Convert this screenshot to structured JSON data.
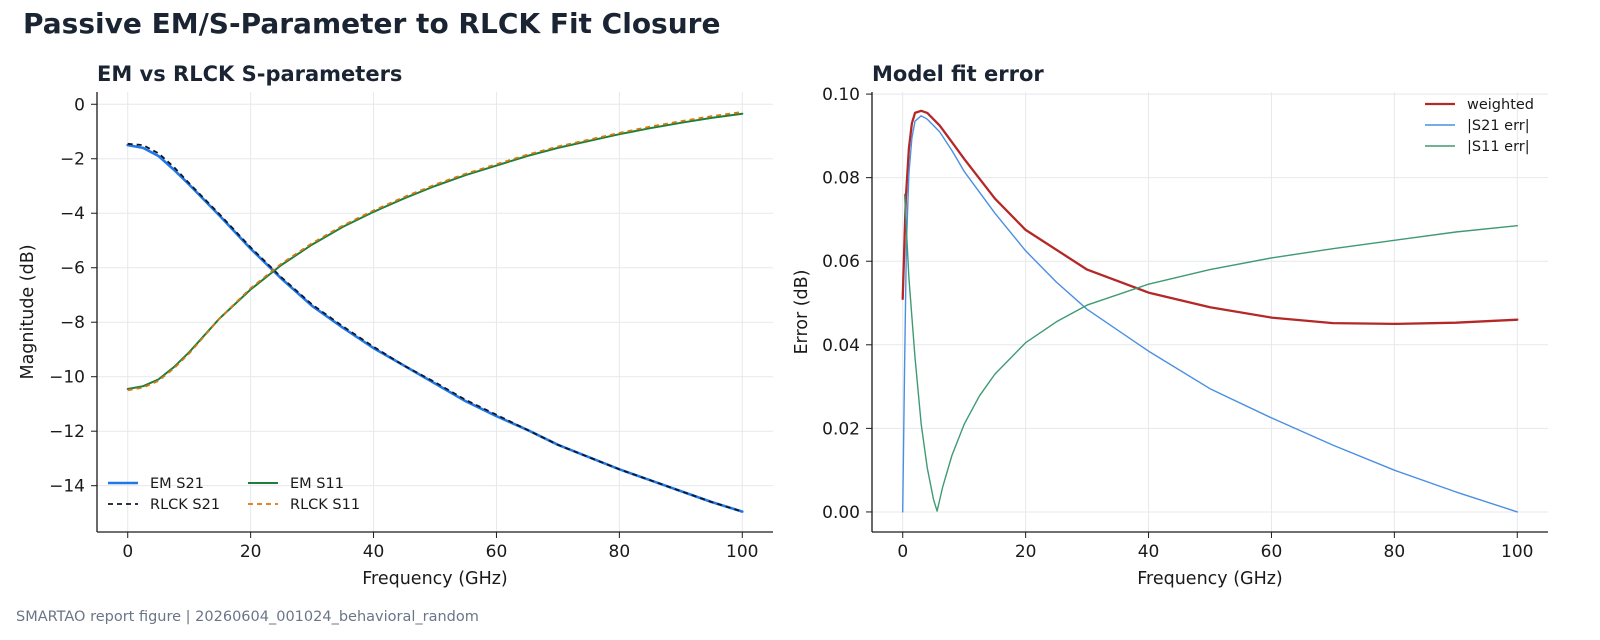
{
  "page": {
    "title": "Passive EM/S-Parameter to RLCK Fit Closure",
    "footer": "SMARTAO report figure | 20260604_001024_behavioral_random"
  },
  "chart_data": [
    {
      "type": "line",
      "title": "EM vs RLCK S-parameters",
      "xlabel": "Frequency (GHz)",
      "ylabel": "Magnitude (dB)",
      "xlim": [
        -5,
        105
      ],
      "ylim": [
        -15.7,
        0.45
      ],
      "xticks": [
        0,
        20,
        40,
        60,
        80,
        100
      ],
      "yticks": [
        0,
        -2,
        -4,
        -6,
        -8,
        -10,
        -12,
        -14
      ],
      "grid": true,
      "legend": "lower-left",
      "x": [
        0,
        2.5,
        5,
        7.5,
        10,
        15,
        20,
        25,
        30,
        35,
        40,
        45,
        50,
        55,
        60,
        65,
        70,
        75,
        80,
        85,
        90,
        95,
        100
      ],
      "series": [
        {
          "name": "EM S21",
          "color": "#1f77e8",
          "dash": "solid",
          "width": 2.6,
          "values": [
            -1.5,
            -1.6,
            -1.9,
            -2.4,
            -2.95,
            -4.1,
            -5.3,
            -6.4,
            -7.4,
            -8.2,
            -8.95,
            -9.6,
            -10.25,
            -10.9,
            -11.45,
            -11.95,
            -12.5,
            -12.95,
            -13.4,
            -13.8,
            -14.2,
            -14.6,
            -14.95
          ]
        },
        {
          "name": "RLCK S21",
          "color": "#0f172a",
          "dash": "5,4",
          "width": 1.8,
          "values": [
            -1.45,
            -1.5,
            -1.8,
            -2.3,
            -2.9,
            -4.05,
            -5.25,
            -6.35,
            -7.35,
            -8.15,
            -8.9,
            -9.6,
            -10.2,
            -10.85,
            -11.4,
            -11.95,
            -12.5,
            -12.95,
            -13.4,
            -13.8,
            -14.2,
            -14.6,
            -14.95
          ]
        },
        {
          "name": "EM S11",
          "color": "#1b7f3a",
          "dash": "solid",
          "width": 2.0,
          "values": [
            -10.45,
            -10.35,
            -10.1,
            -9.65,
            -9.1,
            -7.85,
            -6.8,
            -5.9,
            -5.15,
            -4.5,
            -3.95,
            -3.45,
            -3.0,
            -2.6,
            -2.25,
            -1.9,
            -1.6,
            -1.35,
            -1.1,
            -0.88,
            -0.68,
            -0.5,
            -0.35
          ]
        },
        {
          "name": "RLCK S11",
          "color": "#d9770f",
          "dash": "5,4",
          "width": 1.8,
          "values": [
            -10.5,
            -10.4,
            -10.15,
            -9.7,
            -9.15,
            -7.85,
            -6.75,
            -5.85,
            -5.1,
            -4.45,
            -3.9,
            -3.4,
            -2.95,
            -2.55,
            -2.2,
            -1.85,
            -1.55,
            -1.3,
            -1.05,
            -0.82,
            -0.62,
            -0.44,
            -0.28
          ]
        }
      ]
    },
    {
      "type": "line",
      "title": "Model fit error",
      "xlabel": "Frequency (GHz)",
      "ylabel": "Error (dB)",
      "xlim": [
        -5,
        105
      ],
      "ylim": [
        -0.0048,
        0.1005
      ],
      "xticks": [
        0,
        20,
        40,
        60,
        80,
        100
      ],
      "yticks": [
        0.0,
        0.02,
        0.04,
        0.06,
        0.08,
        0.1
      ],
      "yticks_fmt": 2,
      "grid": true,
      "legend": "upper-right",
      "series": [
        {
          "name": "weighted",
          "color": "#b42828",
          "width": 2.3,
          "x": [
            0,
            0.5,
            1,
            1.5,
            2,
            3,
            4,
            6,
            8,
            10,
            15,
            20,
            30,
            40,
            50,
            60,
            70,
            80,
            90,
            100
          ],
          "values": [
            0.051,
            0.075,
            0.087,
            0.093,
            0.0955,
            0.096,
            0.0955,
            0.0925,
            0.0885,
            0.0845,
            0.075,
            0.0675,
            0.058,
            0.0525,
            0.049,
            0.0465,
            0.0452,
            0.045,
            0.0453,
            0.046
          ]
        },
        {
          "name": "|S21 err|",
          "color": "#4a90e2",
          "width": 1.4,
          "x": [
            0,
            0.3,
            0.6,
            1,
            1.5,
            2,
            3,
            4,
            6,
            8,
            10,
            15,
            20,
            25,
            30,
            40,
            50,
            60,
            70,
            80,
            90,
            100
          ],
          "values": [
            0.0,
            0.035,
            0.064,
            0.081,
            0.0895,
            0.0935,
            0.0948,
            0.094,
            0.091,
            0.0865,
            0.0815,
            0.0715,
            0.0625,
            0.055,
            0.0485,
            0.0385,
            0.0295,
            0.0225,
            0.016,
            0.01,
            0.0048,
            0.0
          ]
        },
        {
          "name": "|S11 err|",
          "color": "#3f9a74",
          "width": 1.4,
          "x": [
            0.3,
            1,
            2,
            3,
            4,
            5,
            5.6,
            6.5,
            8,
            10,
            12.5,
            15,
            20,
            25,
            30,
            40,
            50,
            60,
            70,
            80,
            90,
            100
          ],
          "values": [
            0.076,
            0.056,
            0.037,
            0.021,
            0.0105,
            0.003,
            0.0002,
            0.006,
            0.0135,
            0.021,
            0.0278,
            0.033,
            0.0405,
            0.0455,
            0.0495,
            0.0545,
            0.058,
            0.0608,
            0.063,
            0.065,
            0.067,
            0.0685
          ]
        }
      ]
    }
  ]
}
